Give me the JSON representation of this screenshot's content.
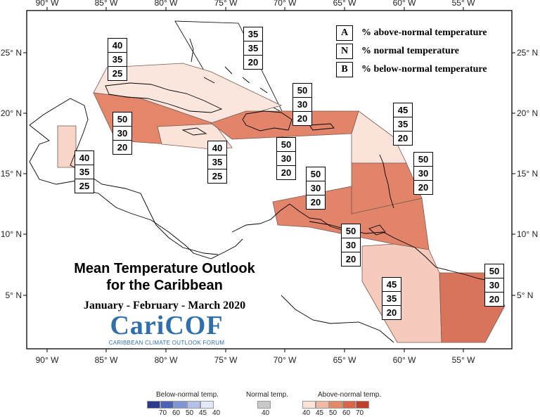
{
  "map": {
    "title_line1": "Mean Temperature Outlook",
    "title_line2": "for the Caribbean",
    "subtitle": "January - February - March 2020",
    "logo_name": "CariCOF",
    "logo_forum": "CARIBBEAN CLIMATE OUTLOOK FORUM",
    "lon_ticks": [
      "90° W",
      "85° W",
      "80° W",
      "75° W",
      "70° W",
      "65° W",
      "60° W",
      "55° W"
    ],
    "lat_ticks": [
      "25° N",
      "20° N",
      "15° N",
      "10° N",
      "5° N"
    ],
    "key": [
      {
        "letter": "A",
        "text": "% above-normal temperature"
      },
      {
        "letter": "N",
        "text": "% normal temperature"
      },
      {
        "letter": "B",
        "text": "% below-normal temperature"
      }
    ],
    "regions": [
      {
        "a": "35",
        "n": "35",
        "b": "20"
      },
      {
        "a": "40",
        "n": "35",
        "b": "25"
      },
      {
        "a": "50",
        "n": "30",
        "b": "20"
      },
      {
        "a": "50",
        "n": "30",
        "b": "20"
      },
      {
        "a": "45",
        "n": "35",
        "b": "20"
      },
      {
        "a": "40",
        "n": "35",
        "b": "25"
      },
      {
        "a": "40",
        "n": "35",
        "b": "25"
      },
      {
        "a": "50",
        "n": "30",
        "b": "20"
      },
      {
        "a": "50",
        "n": "30",
        "b": "20"
      },
      {
        "a": "50",
        "n": "30",
        "b": "20"
      },
      {
        "a": "50",
        "n": "30",
        "b": "20"
      },
      {
        "a": "45",
        "n": "35",
        "b": "20"
      },
      {
        "a": "50",
        "n": "30",
        "b": "20"
      }
    ]
  },
  "legend": {
    "below_title": "Below-normal temp.",
    "normal_title": "Normal temp.",
    "above_title": "Above-normal temp.",
    "below_labels": [
      "70",
      "60",
      "50",
      "45",
      "40"
    ],
    "normal_label": "40",
    "above_labels": [
      "40",
      "45",
      "50",
      "60",
      "70"
    ],
    "below_colors": [
      "#2b3a8f",
      "#4a63b6",
      "#7f95d6",
      "#b3c0ea",
      "#e3e9f8"
    ],
    "normal_color": "#c8c8c8",
    "above_colors": [
      "#fbe3da",
      "#f3b8a1",
      "#e58866",
      "#d8654a",
      "#c0412a"
    ]
  }
}
